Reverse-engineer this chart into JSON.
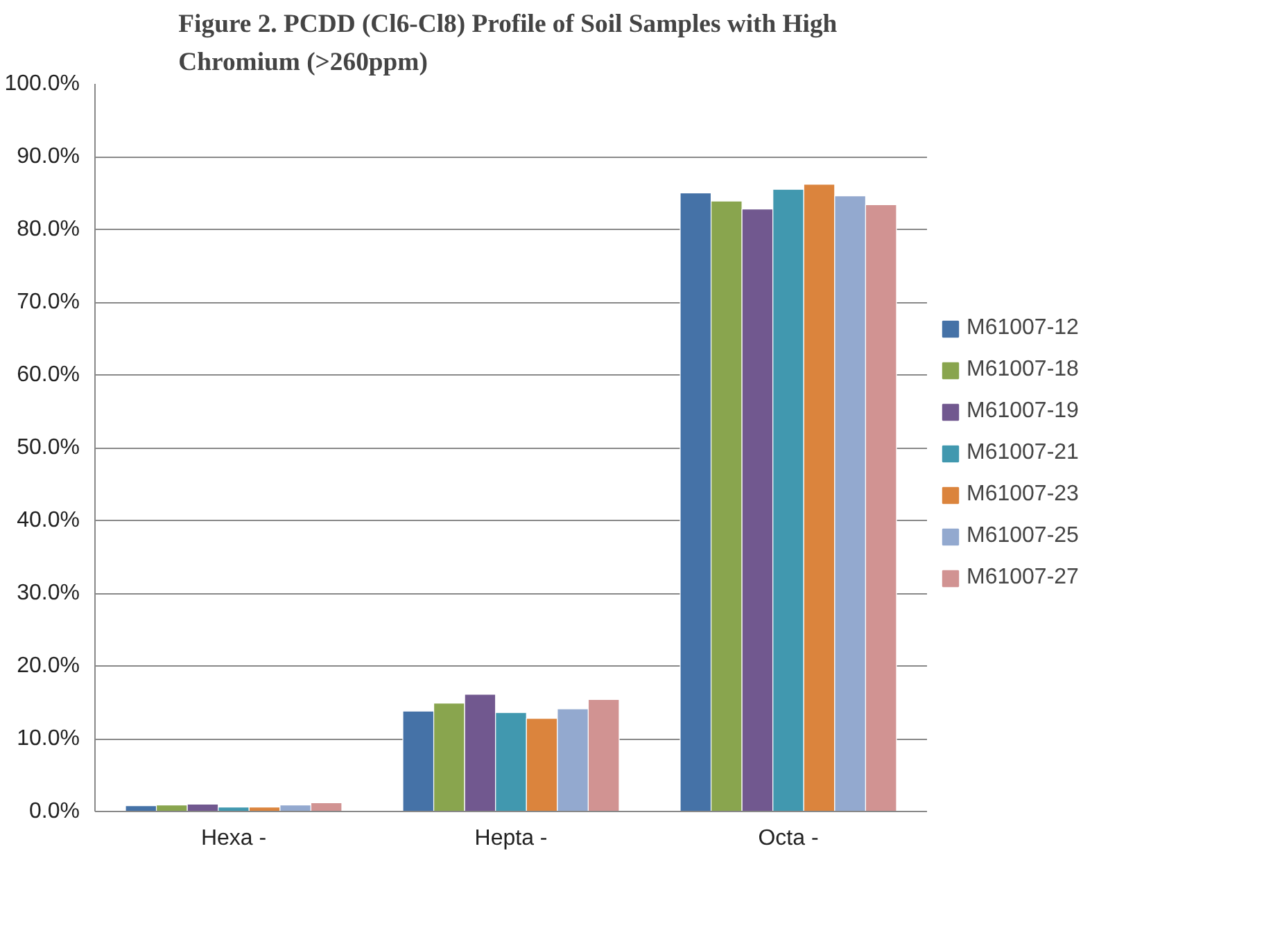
{
  "chart_data": {
    "type": "bar",
    "title": "Figure 2. PCDD (Cl6-Cl8)  Profile of Soil Samples with High Chromium (>260ppm)",
    "categories": [
      "Hexa -",
      "Hepta -",
      "Octa -"
    ],
    "series": [
      {
        "name": "M61007-12",
        "color": "#4572a7",
        "values": [
          0.8,
          13.8,
          85.0
        ]
      },
      {
        "name": "M61007-18",
        "color": "#89a54e",
        "values": [
          0.9,
          14.9,
          83.9
        ]
      },
      {
        "name": "M61007-19",
        "color": "#71588f",
        "values": [
          1.0,
          16.1,
          82.8
        ]
      },
      {
        "name": "M61007-21",
        "color": "#4198af",
        "values": [
          0.6,
          13.6,
          85.5
        ]
      },
      {
        "name": "M61007-23",
        "color": "#db843d",
        "values": [
          0.6,
          12.8,
          86.2
        ]
      },
      {
        "name": "M61007-25",
        "color": "#93a9cf",
        "values": [
          0.9,
          14.1,
          84.6
        ]
      },
      {
        "name": "M61007-27",
        "color": "#d19392",
        "values": [
          1.2,
          15.4,
          83.4
        ]
      }
    ],
    "ylim": [
      0,
      100
    ],
    "yticks": [
      {
        "value": 0,
        "label": "0.0%"
      },
      {
        "value": 10,
        "label": "10.0%"
      },
      {
        "value": 20,
        "label": "20.0%"
      },
      {
        "value": 30,
        "label": "30.0%"
      },
      {
        "value": 40,
        "label": "40.0%"
      },
      {
        "value": 50,
        "label": "50.0%"
      },
      {
        "value": 60,
        "label": "60.0%"
      },
      {
        "value": 70,
        "label": "70.0%"
      },
      {
        "value": 80,
        "label": "80.0%"
      },
      {
        "value": 90,
        "label": "90.0%"
      },
      {
        "value": 100,
        "label": "100.0%"
      }
    ],
    "grid": "y",
    "legend": "right"
  }
}
